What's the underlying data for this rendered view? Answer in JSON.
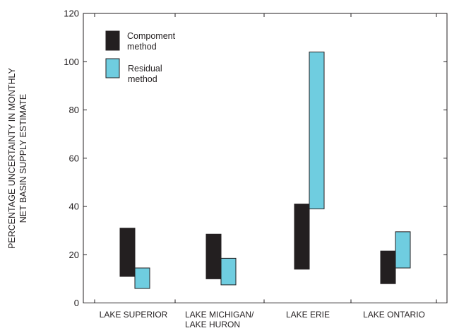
{
  "chart_data": {
    "type": "bar",
    "subtype": "floating-range",
    "categories": [
      [
        "LAKE SUPERIOR"
      ],
      [
        "LAKE MICHIGAN/",
        "LAKE HURON"
      ],
      [
        "LAKE ERIE"
      ],
      [
        "LAKE ONTARIO"
      ]
    ],
    "series": [
      {
        "name": [
          "Compoment",
          "method"
        ],
        "color": "#231f20",
        "ranges": [
          [
            11,
            31
          ],
          [
            10,
            28.5
          ],
          [
            14,
            41
          ],
          [
            8,
            21.5
          ]
        ]
      },
      {
        "name": [
          "Residual",
          "method"
        ],
        "color": "#6fcde0",
        "ranges": [
          [
            6,
            14.5
          ],
          [
            7.5,
            18.5
          ],
          [
            39,
            104
          ],
          [
            14.5,
            29.5
          ]
        ]
      }
    ],
    "ylabel": [
      "PERCENTAGE UNCERTAINTY IN MONTHLY",
      "NET BASIN SUPPLY ESTIMATE"
    ],
    "ylim": [
      0,
      120
    ],
    "yticks": [
      0,
      20,
      40,
      60,
      80,
      100,
      120
    ],
    "grid": false,
    "legend_position": "top-left"
  }
}
